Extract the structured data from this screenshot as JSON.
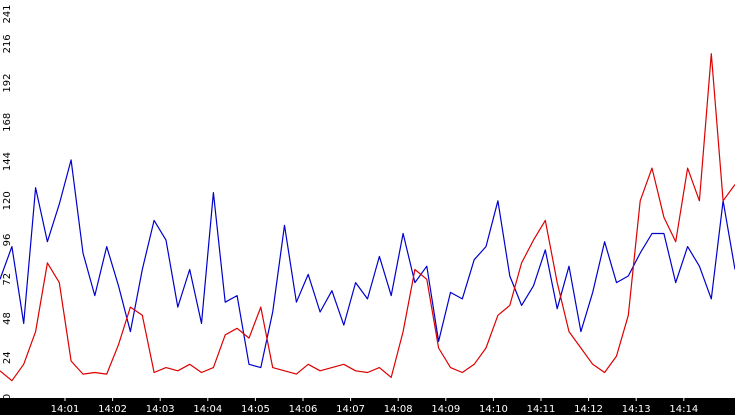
{
  "chart_data": {
    "type": "line",
    "title": "",
    "xlabel": "",
    "ylabel": "",
    "x_ticks": [
      "14:01",
      "14:02",
      "14:03",
      "14:04",
      "14:05",
      "14:06",
      "14:07",
      "14:08",
      "14:09",
      "14:10",
      "14:11",
      "14:12",
      "14:13",
      "14:14"
    ],
    "y_ticks": [
      0,
      24,
      48,
      72,
      96,
      120,
      144,
      168,
      192,
      216,
      241
    ],
    "ylim": [
      0,
      241
    ],
    "xlim_minutes": [
      0,
      15.5
    ],
    "grid": false,
    "series": [
      {
        "color": "#0000cc",
        "x_minutes": [
          0,
          0.25,
          0.5,
          0.75,
          1,
          1.25,
          1.5,
          1.75,
          2,
          2.25,
          2.5,
          2.75,
          3,
          3.25,
          3.5,
          3.75,
          4,
          4.25,
          4.5,
          4.75,
          5,
          5.25,
          5.5,
          5.75,
          6,
          6.25,
          6.5,
          6.75,
          7,
          7.25,
          7.5,
          7.75,
          8,
          8.25,
          8.5,
          8.75,
          9,
          9.25,
          9.5,
          9.75,
          10,
          10.25,
          10.5,
          10.75,
          11,
          11.25,
          11.5,
          11.75,
          12,
          12.25,
          12.5,
          12.75,
          13,
          13.25,
          13.5,
          13.75,
          14,
          14.25,
          14.5,
          14.75,
          15,
          15.25,
          15.5
        ],
        "values": [
          72,
          92,
          45,
          128,
          95,
          118,
          145,
          88,
          62,
          92,
          68,
          40,
          78,
          108,
          96,
          55,
          78,
          45,
          125,
          58,
          62,
          20,
          18,
          52,
          105,
          58,
          75,
          52,
          65,
          44,
          70,
          60,
          86,
          62,
          100,
          70,
          80,
          34,
          64,
          60,
          84,
          92,
          120,
          74,
          56,
          68,
          90,
          54,
          80,
          40,
          64,
          95,
          70,
          74,
          88,
          100,
          100,
          70,
          92,
          80,
          60,
          120,
          78
        ]
      },
      {
        "color": "#dd0000",
        "x_minutes": [
          0,
          0.25,
          0.5,
          0.75,
          1,
          1.25,
          1.5,
          1.75,
          2,
          2.25,
          2.5,
          2.75,
          3,
          3.25,
          3.5,
          3.75,
          4,
          4.25,
          4.5,
          4.75,
          5,
          5.25,
          5.5,
          5.75,
          6,
          6.25,
          6.5,
          6.75,
          7,
          7.25,
          7.5,
          7.75,
          8,
          8.25,
          8.5,
          8.75,
          9,
          9.25,
          9.5,
          9.75,
          10,
          10.25,
          10.5,
          10.75,
          11,
          11.25,
          11.5,
          11.75,
          12,
          12.25,
          12.5,
          12.75,
          13,
          13.25,
          13.5,
          13.75,
          14,
          14.25,
          14.5,
          14.75,
          15,
          15.25,
          15.5
        ],
        "values": [
          16,
          10,
          20,
          40,
          82,
          70,
          22,
          14,
          15,
          14,
          32,
          55,
          50,
          15,
          18,
          16,
          20,
          15,
          18,
          38,
          42,
          36,
          55,
          18,
          16,
          14,
          20,
          16,
          18,
          20,
          16,
          15,
          18,
          12,
          40,
          78,
          72,
          30,
          18,
          15,
          20,
          30,
          50,
          56,
          82,
          96,
          108,
          70,
          40,
          30,
          20,
          15,
          25,
          50,
          120,
          140,
          110,
          95,
          140,
          120,
          210,
          120,
          130
        ]
      }
    ]
  }
}
